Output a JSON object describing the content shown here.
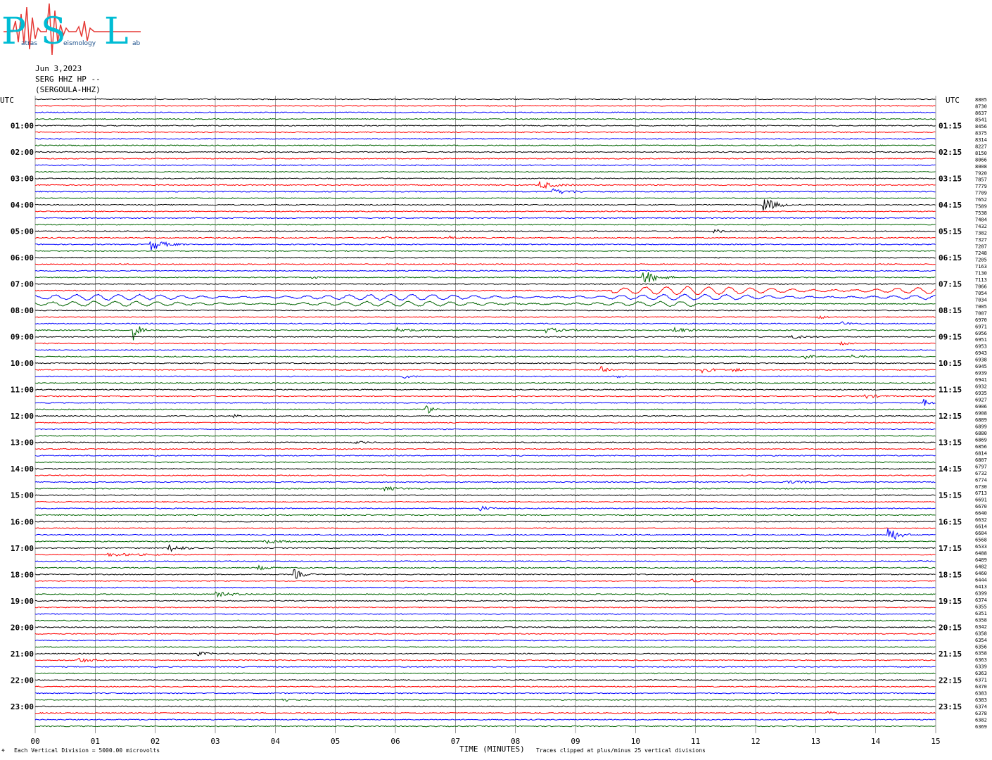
{
  "header": {
    "logo_letters": [
      "P",
      "S",
      "L"
    ],
    "logo_words": [
      "atras",
      "eismology",
      "ab"
    ],
    "date": "Jun 3,2023",
    "channel": "SERG HHZ HP --",
    "station": "(SERGOULA-HHZ)"
  },
  "left_axis_title": "UTC",
  "right_axis_title": "UTC",
  "footer": {
    "scale_note": "Each Vertical Division = 5000.00 microvolts",
    "xlabel": "TIME (MINUTES)",
    "clip_note": "Traces clipped at plus/minus 25 vertical divisions",
    "corner_mark": "⚘"
  },
  "colors": {
    "trace_cycle": [
      "#000000",
      "#ff0000",
      "#0000ff",
      "#006400"
    ],
    "gridline": "#555555",
    "logo_cyan": "#00bcd4",
    "logo_red": "#e53935"
  },
  "chart_data": {
    "type": "helicorder",
    "minutes_per_line": 15,
    "lines": 96,
    "x": {
      "label": "TIME (MINUTES)",
      "range": [
        0,
        15
      ],
      "ticks": [
        "00",
        "01",
        "02",
        "03",
        "04",
        "05",
        "06",
        "07",
        "08",
        "09",
        "10",
        "11",
        "12",
        "13",
        "14",
        "15"
      ]
    },
    "left_labels": [
      "01:00",
      "02:00",
      "03:00",
      "04:00",
      "05:00",
      "06:00",
      "07:00",
      "08:00",
      "09:00",
      "10:00",
      "11:00",
      "12:00",
      "13:00",
      "14:00",
      "15:00",
      "16:00",
      "17:00",
      "18:00",
      "19:00",
      "20:00",
      "21:00",
      "22:00",
      "23:00"
    ],
    "right_labels": [
      "01:15",
      "02:15",
      "03:15",
      "04:15",
      "05:15",
      "06:15",
      "07:15",
      "08:15",
      "09:15",
      "10:15",
      "11:15",
      "12:15",
      "13:15",
      "14:15",
      "15:15",
      "16:15",
      "17:15",
      "18:15",
      "19:15",
      "20:15",
      "21:15",
      "22:15",
      "23:15"
    ],
    "right_values": [
      8805,
      8730,
      8637,
      8541,
      8456,
      8375,
      8314,
      8227,
      8150,
      8066,
      8008,
      7920,
      7857,
      7779,
      7709,
      7652,
      7589,
      7538,
      7484,
      7432,
      7382,
      7327,
      7287,
      7248,
      7205,
      7163,
      7130,
      7113,
      7066,
      7054,
      7034,
      7005,
      7007,
      6970,
      6971,
      6956,
      6951,
      6953,
      6943,
      6938,
      6945,
      6939,
      6941,
      6932,
      6935,
      6927,
      6906,
      6908,
      6889,
      6899,
      6880,
      6869,
      6856,
      6814,
      6807,
      6797,
      6732,
      6774,
      6730,
      6713,
      6691,
      6670,
      6640,
      6632,
      6614,
      6604,
      6568,
      6533,
      6488,
      6489,
      6482,
      6460,
      6444,
      6413,
      6399,
      6374,
      6355,
      6351,
      6358,
      6342,
      6358,
      6354,
      6356,
      6358,
      6363,
      6339,
      6363,
      6371,
      6370,
      6383,
      6383,
      6374,
      6378,
      6382,
      6369
    ],
    "events": [
      {
        "line": 13,
        "minute": 8.4,
        "amp": 6,
        "dur": 0.6
      },
      {
        "line": 14,
        "minute": 8.6,
        "amp": 4,
        "dur": 0.8
      },
      {
        "line": 16,
        "minute": 12.1,
        "amp": 14,
        "dur": 0.5
      },
      {
        "line": 20,
        "minute": 11.3,
        "amp": 3,
        "dur": 0.4
      },
      {
        "line": 21,
        "minute": 5.8,
        "amp": 2,
        "dur": 0.3
      },
      {
        "line": 21,
        "minute": 6.9,
        "amp": 2,
        "dur": 0.3
      },
      {
        "line": 22,
        "minute": 1.9,
        "amp": 9,
        "dur": 0.6
      },
      {
        "line": 27,
        "minute": 10.1,
        "amp": 12,
        "dur": 0.6
      },
      {
        "line": 27,
        "minute": 4.6,
        "amp": 2,
        "dur": 0.3
      },
      {
        "line": 29,
        "minute": 9.6,
        "amp": 10,
        "dur": 5.4
      },
      {
        "line": 30,
        "minute": 0.0,
        "amp": 7,
        "dur": 15
      },
      {
        "line": 31,
        "minute": 0.0,
        "amp": 6,
        "dur": 11
      },
      {
        "line": 33,
        "minute": 13.0,
        "amp": 3,
        "dur": 0.4
      },
      {
        "line": 34,
        "minute": 13.4,
        "amp": 3,
        "dur": 0.4
      },
      {
        "line": 35,
        "minute": 1.6,
        "amp": 20,
        "dur": 0.3
      },
      {
        "line": 35,
        "minute": 6.0,
        "amp": 4,
        "dur": 0.6
      },
      {
        "line": 35,
        "minute": 8.5,
        "amp": 4,
        "dur": 0.7
      },
      {
        "line": 35,
        "minute": 10.6,
        "amp": 5,
        "dur": 0.6
      },
      {
        "line": 36,
        "minute": 12.6,
        "amp": 3,
        "dur": 0.5
      },
      {
        "line": 37,
        "minute": 13.4,
        "amp": 3,
        "dur": 0.4
      },
      {
        "line": 39,
        "minute": 12.8,
        "amp": 5,
        "dur": 0.3
      },
      {
        "line": 39,
        "minute": 13.6,
        "amp": 4,
        "dur": 0.3
      },
      {
        "line": 41,
        "minute": 9.4,
        "amp": 14,
        "dur": 0.2
      },
      {
        "line": 41,
        "minute": 11.1,
        "amp": 4,
        "dur": 0.5
      },
      {
        "line": 41,
        "minute": 11.6,
        "amp": 4,
        "dur": 0.3
      },
      {
        "line": 42,
        "minute": 6.1,
        "amp": 3,
        "dur": 0.4
      },
      {
        "line": 42,
        "minute": 9.7,
        "amp": 3,
        "dur": 0.3
      },
      {
        "line": 45,
        "minute": 13.8,
        "amp": 3,
        "dur": 0.6
      },
      {
        "line": 46,
        "minute": 14.8,
        "amp": 5,
        "dur": 0.3
      },
      {
        "line": 47,
        "minute": 6.5,
        "amp": 16,
        "dur": 0.2
      },
      {
        "line": 48,
        "minute": 3.3,
        "amp": 2,
        "dur": 0.3
      },
      {
        "line": 52,
        "minute": 5.3,
        "amp": 2,
        "dur": 0.5
      },
      {
        "line": 58,
        "minute": 12.5,
        "amp": 2,
        "dur": 1.0
      },
      {
        "line": 59,
        "minute": 5.8,
        "amp": 3,
        "dur": 0.8
      },
      {
        "line": 62,
        "minute": 7.4,
        "amp": 4,
        "dur": 0.4
      },
      {
        "line": 66,
        "minute": 14.2,
        "amp": 14,
        "dur": 0.4
      },
      {
        "line": 67,
        "minute": 3.8,
        "amp": 3,
        "dur": 0.8
      },
      {
        "line": 68,
        "minute": 2.2,
        "amp": 6,
        "dur": 0.6
      },
      {
        "line": 69,
        "minute": 1.2,
        "amp": 2,
        "dur": 1.5
      },
      {
        "line": 71,
        "minute": 3.7,
        "amp": 3,
        "dur": 0.5
      },
      {
        "line": 72,
        "minute": 4.3,
        "amp": 8,
        "dur": 0.4
      },
      {
        "line": 73,
        "minute": 10.9,
        "amp": 3,
        "dur": 0.4
      },
      {
        "line": 75,
        "minute": 3.0,
        "amp": 3,
        "dur": 0.9
      },
      {
        "line": 84,
        "minute": 2.7,
        "amp": 3,
        "dur": 0.4
      },
      {
        "line": 85,
        "minute": 0.7,
        "amp": 4,
        "dur": 0.5
      },
      {
        "line": 91,
        "minute": 4.1,
        "amp": 3,
        "dur": 0.3
      },
      {
        "line": 93,
        "minute": 13.2,
        "amp": 5,
        "dur": 0.3
      }
    ]
  }
}
